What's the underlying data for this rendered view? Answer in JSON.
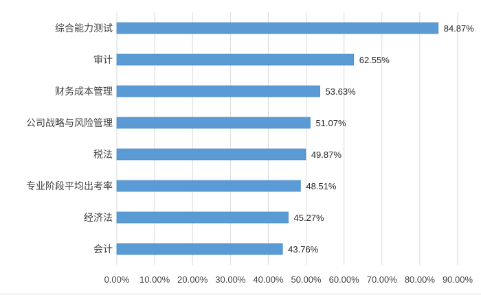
{
  "chart_data": {
    "type": "bar",
    "orientation": "horizontal",
    "title": "",
    "xlabel": "",
    "ylabel": "",
    "categories": [
      "综合能力测试",
      "审计",
      "财务成本管理",
      "公司战略与风险管理",
      "税法",
      "专业阶段平均出考率",
      "经济法",
      "会计"
    ],
    "values": [
      84.87,
      62.55,
      53.63,
      51.07,
      49.87,
      48.51,
      45.27,
      43.76
    ],
    "data_labels": [
      "84.87%",
      "62.55%",
      "53.63%",
      "51.07%",
      "49.87%",
      "48.51%",
      "45.27%",
      "43.76%"
    ],
    "xlim": [
      0,
      90
    ],
    "x_ticks": [
      0,
      10,
      20,
      30,
      40,
      50,
      60,
      70,
      80,
      90
    ],
    "x_tick_labels": [
      "0.00%",
      "10.00%",
      "20.00%",
      "30.00%",
      "40.00%",
      "50.00%",
      "60.00%",
      "70.00%",
      "80.00%",
      "90.00%"
    ],
    "grid": "vertical",
    "legend": "none",
    "colors": {
      "bar": "#5b9bd5",
      "bar_edge": "#4a89c8",
      "grid": "#d9d9d9"
    }
  }
}
